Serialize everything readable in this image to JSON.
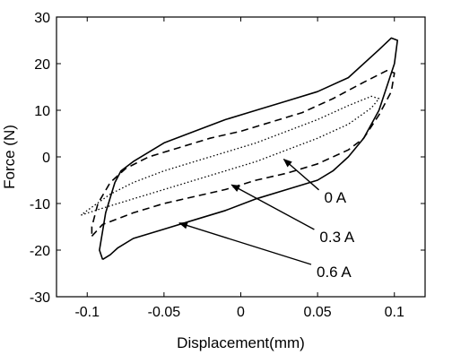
{
  "chart_data": {
    "type": "line",
    "title": "",
    "xlabel": "Displacement(mm)",
    "ylabel": "Force (N)",
    "xlim": [
      -0.12,
      0.12
    ],
    "ylim": [
      -30,
      30
    ],
    "xticks": [
      {
        "value": -0.1,
        "label": "-0.1"
      },
      {
        "value": -0.05,
        "label": "-0.05"
      },
      {
        "value": 0,
        "label": "0"
      },
      {
        "value": 0.05,
        "label": "0.05"
      },
      {
        "value": 0.1,
        "label": "0.1"
      }
    ],
    "yticks": [
      {
        "value": -30,
        "label": "-30"
      },
      {
        "value": -20,
        "label": "-20"
      },
      {
        "value": -10,
        "label": "-10"
      },
      {
        "value": 0,
        "label": "0"
      },
      {
        "value": 10,
        "label": "10"
      },
      {
        "value": 20,
        "label": "20"
      },
      {
        "value": 30,
        "label": "30"
      }
    ],
    "grid": false,
    "legend": "none",
    "series": [
      {
        "style": "solid",
        "color": "#000000",
        "points": [
          [
            -0.09,
            -22
          ],
          [
            -0.085,
            -21
          ],
          [
            -0.08,
            -19.5
          ],
          [
            -0.07,
            -17.5
          ],
          [
            -0.05,
            -15.5
          ],
          [
            -0.03,
            -13.5
          ],
          [
            -0.01,
            -11.5
          ],
          [
            0.01,
            -9
          ],
          [
            0.03,
            -7
          ],
          [
            0.05,
            -5
          ],
          [
            0.06,
            -3
          ],
          [
            0.07,
            0
          ],
          [
            0.08,
            4
          ],
          [
            0.09,
            10
          ],
          [
            0.095,
            15
          ],
          [
            0.1,
            20
          ],
          [
            0.102,
            25
          ],
          [
            0.098,
            25.5
          ],
          [
            0.09,
            23
          ],
          [
            0.07,
            17
          ],
          [
            0.05,
            14
          ],
          [
            0.03,
            12
          ],
          [
            0.01,
            10
          ],
          [
            -0.01,
            8
          ],
          [
            -0.03,
            5.5
          ],
          [
            -0.05,
            3
          ],
          [
            -0.07,
            -1
          ],
          [
            -0.078,
            -3
          ],
          [
            -0.082,
            -5.5
          ],
          [
            -0.088,
            -12
          ],
          [
            -0.092,
            -20
          ],
          [
            -0.09,
            -22
          ]
        ]
      },
      {
        "style": "dashed",
        "color": "#000000",
        "points": [
          [
            -0.097,
            -17
          ],
          [
            -0.09,
            -14.5
          ],
          [
            -0.07,
            -12
          ],
          [
            -0.05,
            -10
          ],
          [
            -0.03,
            -8.5
          ],
          [
            -0.01,
            -7
          ],
          [
            0.01,
            -5
          ],
          [
            0.03,
            -3.5
          ],
          [
            0.05,
            -1.5
          ],
          [
            0.07,
            1.5
          ],
          [
            0.08,
            4
          ],
          [
            0.09,
            9
          ],
          [
            0.098,
            14
          ],
          [
            0.1,
            18
          ],
          [
            0.095,
            18.5
          ],
          [
            0.08,
            16
          ],
          [
            0.06,
            12.5
          ],
          [
            0.04,
            9.5
          ],
          [
            0.02,
            7.5
          ],
          [
            0,
            5.5
          ],
          [
            -0.02,
            4
          ],
          [
            -0.04,
            2
          ],
          [
            -0.06,
            0
          ],
          [
            -0.075,
            -2.5
          ],
          [
            -0.085,
            -5.5
          ],
          [
            -0.093,
            -10
          ],
          [
            -0.097,
            -15
          ],
          [
            -0.097,
            -17
          ]
        ]
      },
      {
        "style": "dotted",
        "color": "#000000",
        "points": [
          [
            -0.104,
            -12.5
          ],
          [
            -0.09,
            -11
          ],
          [
            -0.07,
            -9
          ],
          [
            -0.05,
            -7
          ],
          [
            -0.03,
            -5
          ],
          [
            -0.01,
            -3
          ],
          [
            0.01,
            -1
          ],
          [
            0.03,
            1.5
          ],
          [
            0.05,
            4
          ],
          [
            0.07,
            7
          ],
          [
            0.085,
            10.5
          ],
          [
            0.09,
            12.5
          ],
          [
            0.085,
            13
          ],
          [
            0.07,
            11
          ],
          [
            0.05,
            8
          ],
          [
            0.03,
            5.5
          ],
          [
            0.01,
            3
          ],
          [
            -0.01,
            1
          ],
          [
            -0.03,
            -1
          ],
          [
            -0.05,
            -3
          ],
          [
            -0.07,
            -5.5
          ],
          [
            -0.085,
            -8
          ],
          [
            -0.1,
            -11.5
          ],
          [
            -0.104,
            -12.5
          ]
        ]
      }
    ],
    "annotations": [
      {
        "text": "0 A",
        "text_at": [
          0.052,
          -9
        ],
        "arrow_to": [
          0.028,
          -0.5
        ]
      },
      {
        "text": "0.3 A",
        "text_at": [
          0.049,
          -17.5
        ],
        "arrow_to": [
          -0.006,
          -6
        ]
      },
      {
        "text": "0.6 A",
        "text_at": [
          0.047,
          -25
        ],
        "arrow_to": [
          -0.04,
          -14.2
        ]
      }
    ]
  }
}
